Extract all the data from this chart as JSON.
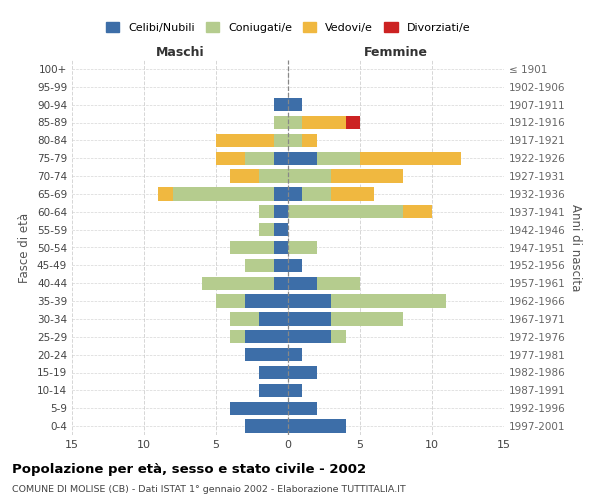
{
  "age_groups": [
    "0-4",
    "5-9",
    "10-14",
    "15-19",
    "20-24",
    "25-29",
    "30-34",
    "35-39",
    "40-44",
    "45-49",
    "50-54",
    "55-59",
    "60-64",
    "65-69",
    "70-74",
    "75-79",
    "80-84",
    "85-89",
    "90-94",
    "95-99",
    "100+"
  ],
  "birth_years": [
    "1997-2001",
    "1992-1996",
    "1987-1991",
    "1982-1986",
    "1977-1981",
    "1972-1976",
    "1967-1971",
    "1962-1966",
    "1957-1961",
    "1952-1956",
    "1947-1951",
    "1942-1946",
    "1937-1941",
    "1932-1936",
    "1927-1931",
    "1922-1926",
    "1917-1921",
    "1912-1916",
    "1907-1911",
    "1902-1906",
    "≤ 1901"
  ],
  "colors": {
    "celibi": "#3d6ea8",
    "coniugati": "#b5cc8e",
    "vedovi": "#f0b840",
    "divorziati": "#cc2222"
  },
  "maschi": {
    "celibi": [
      3,
      4,
      2,
      2,
      3,
      3,
      2,
      3,
      1,
      1,
      1,
      1,
      1,
      1,
      0,
      1,
      0,
      0,
      1,
      0,
      0
    ],
    "coniugati": [
      0,
      0,
      0,
      0,
      0,
      1,
      2,
      2,
      5,
      2,
      3,
      1,
      1,
      7,
      2,
      2,
      1,
      1,
      0,
      0,
      0
    ],
    "vedovi": [
      0,
      0,
      0,
      0,
      0,
      0,
      0,
      0,
      0,
      0,
      0,
      0,
      0,
      1,
      2,
      2,
      4,
      0,
      0,
      0,
      0
    ],
    "divorziati": [
      0,
      0,
      0,
      0,
      0,
      0,
      0,
      0,
      0,
      0,
      0,
      0,
      0,
      0,
      0,
      0,
      0,
      0,
      0,
      0,
      0
    ]
  },
  "femmine": {
    "celibi": [
      4,
      2,
      1,
      2,
      1,
      3,
      3,
      3,
      2,
      1,
      0,
      0,
      0,
      1,
      0,
      2,
      0,
      0,
      1,
      0,
      0
    ],
    "coniugati": [
      0,
      0,
      0,
      0,
      0,
      1,
      5,
      8,
      3,
      0,
      2,
      0,
      8,
      2,
      3,
      3,
      1,
      1,
      0,
      0,
      0
    ],
    "vedovi": [
      0,
      0,
      0,
      0,
      0,
      0,
      0,
      0,
      0,
      0,
      0,
      0,
      2,
      3,
      5,
      7,
      1,
      3,
      0,
      0,
      0
    ],
    "divorziati": [
      0,
      0,
      0,
      0,
      0,
      0,
      0,
      0,
      0,
      0,
      0,
      0,
      0,
      0,
      0,
      0,
      0,
      1,
      0,
      0,
      0
    ]
  },
  "xlim": 15,
  "title": "Popolazione per età, sesso e stato civile - 2002",
  "subtitle": "COMUNE DI MOLISE (CB) - Dati ISTAT 1° gennaio 2002 - Elaborazione TUTTITALIA.IT",
  "ylabel_left": "Fasce di età",
  "ylabel_right": "Anni di nascita",
  "xlabel_left": "Maschi",
  "xlabel_right": "Femmine",
  "legend_labels": [
    "Celibi/Nubili",
    "Coniugati/e",
    "Vedovi/e",
    "Divorziati/e"
  ],
  "background_color": "#ffffff",
  "grid_color": "#cccccc"
}
